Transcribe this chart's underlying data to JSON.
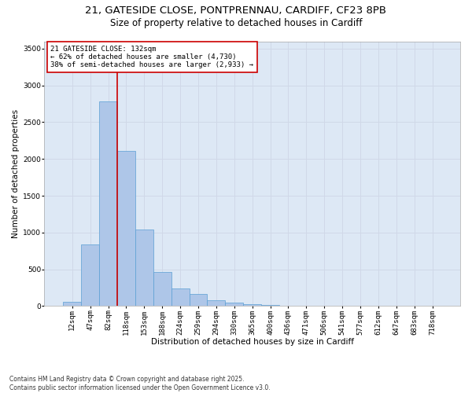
{
  "title_line1": "21, GATESIDE CLOSE, PONTPRENNAU, CARDIFF, CF23 8PB",
  "title_line2": "Size of property relative to detached houses in Cardiff",
  "xlabel": "Distribution of detached houses by size in Cardiff",
  "ylabel": "Number of detached properties",
  "bin_labels": [
    "12sqm",
    "47sqm",
    "82sqm",
    "118sqm",
    "153sqm",
    "188sqm",
    "224sqm",
    "259sqm",
    "294sqm",
    "330sqm",
    "365sqm",
    "400sqm",
    "436sqm",
    "471sqm",
    "506sqm",
    "541sqm",
    "577sqm",
    "612sqm",
    "647sqm",
    "683sqm",
    "718sqm"
  ],
  "bar_heights": [
    55,
    835,
    2780,
    2110,
    1040,
    460,
    235,
    160,
    75,
    45,
    30,
    10,
    5,
    2,
    0,
    0,
    0,
    0,
    0,
    0,
    0
  ],
  "bar_color": "#aec6e8",
  "bar_edge_color": "#5a9fd4",
  "grid_color": "#d0d8e8",
  "background_color": "#dde8f5",
  "vline_color": "#cc0000",
  "vline_index": 2.5,
  "annotation_box_text": "21 GATESIDE CLOSE: 132sqm\n← 62% of detached houses are smaller (4,730)\n38% of semi-detached houses are larger (2,933) →",
  "ylim": [
    0,
    3600
  ],
  "yticks": [
    0,
    500,
    1000,
    1500,
    2000,
    2500,
    3000,
    3500
  ],
  "footer_text": "Contains HM Land Registry data © Crown copyright and database right 2025.\nContains public sector information licensed under the Open Government Licence v3.0.",
  "title_fontsize": 9.5,
  "subtitle_fontsize": 8.5,
  "xlabel_fontsize": 7.5,
  "ylabel_fontsize": 7.5,
  "tick_fontsize": 6.5,
  "annotation_fontsize": 6.5,
  "footer_fontsize": 5.5
}
